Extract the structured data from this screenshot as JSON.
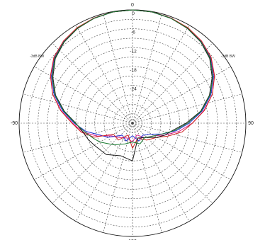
{
  "chart_data": {
    "type": "polar",
    "grid": true,
    "angle_direction": "clockwise",
    "zero_angle": "top",
    "angle_tick_labels": [
      {
        "angle": 0,
        "label": "0"
      },
      {
        "angle": 90,
        "label": "90"
      },
      {
        "angle": 180,
        "label": "180"
      },
      {
        "angle": -90,
        "label": "-90"
      }
    ],
    "radial_axis": {
      "outer_db": 0,
      "inner_db": -36,
      "ring_step_db": 3
    },
    "radial_tick_labels": [
      {
        "db": 0,
        "label": "0"
      },
      {
        "db": -6,
        "label": "-6"
      },
      {
        "db": -12,
        "label": "-12"
      },
      {
        "db": -18,
        "label": "-18"
      },
      {
        "db": -24,
        "label": "-24"
      }
    ],
    "annotations": [
      {
        "angle": -52,
        "db": -1.5,
        "label": "-3dB BW"
      },
      {
        "angle": 52,
        "db": -1.5,
        "label": "-3dB BW"
      }
    ],
    "series": [
      {
        "color": "#e0208a",
        "angles": [
          -180,
          -160,
          -140,
          -120,
          -110,
          -100,
          -90,
          -80,
          -70,
          -60,
          -50,
          -40,
          -30,
          -20,
          -10,
          0,
          10,
          20,
          30,
          40,
          50,
          60,
          70,
          80,
          90,
          100,
          110,
          120,
          140,
          160,
          180
        ],
        "values": [
          -30,
          -31,
          -30,
          -28,
          -24,
          -20,
          -17,
          -13,
          -9,
          -6,
          -3.5,
          -2,
          -1,
          -0.4,
          -0.1,
          0,
          -0.1,
          -0.4,
          -1,
          -2,
          -3.5,
          -6,
          -9,
          -13,
          -17,
          -21,
          -25,
          -28,
          -30,
          -32,
          -30
        ]
      },
      {
        "color": "#2030d8",
        "angles": [
          -180,
          -160,
          -140,
          -120,
          -110,
          -100,
          -90,
          -80,
          -70,
          -60,
          -50,
          -40,
          -30,
          -20,
          -10,
          0,
          10,
          20,
          30,
          40,
          50,
          60,
          70,
          80,
          90,
          100,
          110,
          120,
          140,
          160,
          180
        ],
        "values": [
          -32,
          -30,
          -31,
          -27,
          -25,
          -21,
          -17.5,
          -13.5,
          -9.5,
          -6.3,
          -3.7,
          -2.1,
          -1.1,
          -0.5,
          -0.1,
          0,
          -0.1,
          -0.5,
          -1.1,
          -2.1,
          -3.7,
          -6.3,
          -9.5,
          -13.5,
          -18,
          -22,
          -26,
          -29,
          -31,
          -30,
          -32
        ]
      },
      {
        "color": "#d02020",
        "angles": [
          -180,
          -160,
          -140,
          -120,
          -110,
          -100,
          -90,
          -80,
          -70,
          -60,
          -50,
          -40,
          -30,
          -20,
          -10,
          0,
          10,
          20,
          30,
          40,
          50,
          60,
          70,
          80,
          90,
          100,
          110,
          120,
          140,
          160,
          180
        ],
        "values": [
          -28,
          -32,
          -29,
          -29,
          -23,
          -19.5,
          -16.8,
          -12.8,
          -9,
          -5.9,
          -3.4,
          -1.9,
          -0.9,
          -0.4,
          -0.1,
          0,
          -0.1,
          -0.4,
          -0.9,
          -1.9,
          -3.4,
          -5.9,
          -9,
          -12.8,
          -17,
          -20,
          -24,
          -27,
          -29,
          -31,
          -28
        ]
      },
      {
        "color": "#1a1a1a",
        "angles": [
          -180,
          -160,
          -140,
          -120,
          -110,
          -100,
          -90,
          -80,
          -70,
          -60,
          -50,
          -40,
          -30,
          -20,
          -10,
          0,
          10,
          20,
          30,
          40,
          50,
          60,
          70,
          80,
          90,
          100,
          110,
          120,
          140,
          160,
          180
        ],
        "values": [
          -24,
          -25,
          -23,
          -22,
          -21,
          -20,
          -18,
          -14,
          -10,
          -6.8,
          -4,
          -2.3,
          -1.2,
          -0.5,
          -0.1,
          0,
          -0.1,
          -0.5,
          -1.2,
          -2.3,
          -4,
          -6.8,
          -10,
          -14,
          -19,
          -23,
          -25,
          -27,
          -30,
          -31,
          -24
        ]
      },
      {
        "color": "#1a7a30",
        "angles": [
          -180,
          -160,
          -140,
          -120,
          -110,
          -100,
          -90,
          -80,
          -70,
          -60,
          -50,
          -40,
          -30,
          -20,
          -10,
          0,
          10,
          20,
          30,
          40,
          50,
          60,
          70,
          80,
          90,
          100,
          110,
          120,
          140,
          160,
          180
        ],
        "values": [
          -30,
          -29,
          -27,
          -24,
          -22.5,
          -20.5,
          -17.8,
          -13.8,
          -9.8,
          -6.5,
          -3.8,
          -2.2,
          -1.1,
          -0.5,
          -0.1,
          0,
          -0.1,
          -0.5,
          -1.1,
          -2.2,
          -3.8,
          -6.5,
          -9.8,
          -13.8,
          -18.5,
          -22.5,
          -26,
          -28,
          -30,
          -29,
          -30
        ]
      }
    ]
  }
}
